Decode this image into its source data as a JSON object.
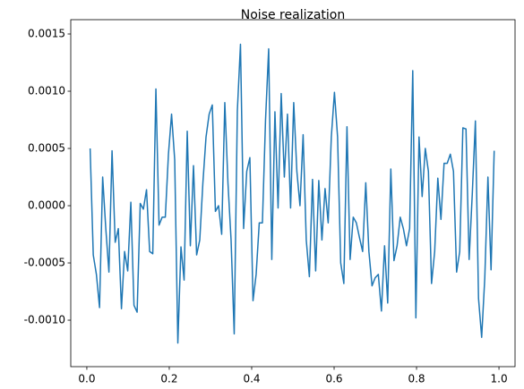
{
  "chart_data": {
    "type": "line",
    "title": "Noise realization",
    "color": "#1f77b4",
    "x": [
      0.008,
      0.0156,
      0.0232,
      0.0308,
      0.0384,
      0.046,
      0.0536,
      0.0612,
      0.0688,
      0.0764,
      0.084,
      0.0916,
      0.0992,
      0.1068,
      0.1144,
      0.122,
      0.1296,
      0.1372,
      0.1448,
      0.1524,
      0.16,
      0.1676,
      0.1752,
      0.1828,
      0.1904,
      0.198,
      0.2056,
      0.2132,
      0.2208,
      0.2284,
      0.236,
      0.2436,
      0.2512,
      0.2588,
      0.2664,
      0.274,
      0.2816,
      0.2892,
      0.2968,
      0.3044,
      0.312,
      0.3196,
      0.3272,
      0.3348,
      0.3424,
      0.35,
      0.3576,
      0.3652,
      0.3728,
      0.3804,
      0.388,
      0.3956,
      0.4032,
      0.4108,
      0.4184,
      0.426,
      0.4336,
      0.4412,
      0.4488,
      0.4564,
      0.464,
      0.4716,
      0.4792,
      0.4868,
      0.4944,
      0.502,
      0.5096,
      0.5172,
      0.5248,
      0.5324,
      0.54,
      0.5476,
      0.5552,
      0.5628,
      0.5704,
      0.578,
      0.5856,
      0.5932,
      0.6008,
      0.6084,
      0.616,
      0.6236,
      0.6312,
      0.6388,
      0.6464,
      0.654,
      0.6616,
      0.6692,
      0.6768,
      0.6844,
      0.692,
      0.6996,
      0.7072,
      0.7148,
      0.7224,
      0.73,
      0.7376,
      0.7452,
      0.7528,
      0.7604,
      0.768,
      0.7756,
      0.7832,
      0.7908,
      0.7984,
      0.806,
      0.8136,
      0.8212,
      0.8288,
      0.8364,
      0.844,
      0.8516,
      0.8592,
      0.8668,
      0.8744,
      0.882,
      0.8896,
      0.8972,
      0.9048,
      0.9124,
      0.92,
      0.9276,
      0.9352,
      0.9428,
      0.9504,
      0.958,
      0.9656,
      0.9732,
      0.9808,
      0.9884
    ],
    "values": [
      0.0005,
      -0.00043,
      -0.0006,
      -0.00089,
      0.00025,
      -0.0002,
      -0.00058,
      0.00048,
      -0.00032,
      -0.0002,
      -0.0009,
      -0.0004,
      -0.00057,
      3e-05,
      -0.00087,
      -0.00093,
      2e-05,
      -3e-05,
      0.00014,
      -0.0004,
      -0.00042,
      0.00102,
      -0.00017,
      -0.0001,
      -0.0001,
      0.00045,
      0.0008,
      0.0004,
      -0.0012,
      -0.00036,
      -0.00065,
      0.00065,
      -0.00035,
      0.00035,
      -0.00043,
      -0.0003,
      0.0002,
      0.0006,
      0.0008,
      0.00088,
      -5e-05,
      0,
      -0.00025,
      0.0009,
      0.0002,
      -0.0003,
      -0.00112,
      0.00083,
      0.00141,
      -0.0002,
      0.0003,
      0.00042,
      -0.00083,
      -0.0006,
      -0.00015,
      -0.00015,
      0.00075,
      0.00137,
      -0.00047,
      0.00082,
      -2e-05,
      0.00098,
      0.00025,
      0.0008,
      -2e-05,
      0.0009,
      0.0003,
      0,
      0.00062,
      -0.0003,
      -0.00062,
      0.00023,
      -0.00057,
      0.00022,
      -0.0003,
      0.00015,
      -0.00015,
      0.0006,
      0.00099,
      0.0006,
      -0.0005,
      -0.00068,
      0.00069,
      -0.00047,
      -0.0001,
      -0.00015,
      -0.00028,
      -0.0004,
      0.0002,
      -0.0004,
      -0.0007,
      -0.00063,
      -0.0006,
      -0.00092,
      -0.00035,
      -0.00085,
      0.00032,
      -0.00048,
      -0.00035,
      -0.0001,
      -0.0002,
      -0.00035,
      -0.0002,
      0.00118,
      -0.00098,
      0.0006,
      8e-05,
      0.0005,
      0.0003,
      -0.00068,
      -0.0004,
      0.00024,
      -0.00012,
      0.00037,
      0.00037,
      0.00045,
      0.0003,
      -0.00058,
      -0.0004,
      0.00068,
      0.00067,
      -0.00047,
      0.0001,
      0.00074,
      -0.00081,
      -0.00115,
      -0.00063,
      0.00025,
      -0.00056,
      0.00048
    ],
    "xlim": [
      -0.039,
      1.039
    ],
    "ylim": [
      -0.001406,
      0.001625
    ],
    "xticks": [
      {
        "value": 0,
        "label": "0.0"
      },
      {
        "value": 0.2,
        "label": "0.2"
      },
      {
        "value": 0.4,
        "label": "0.4"
      },
      {
        "value": 0.6,
        "label": "0.6"
      },
      {
        "value": 0.8,
        "label": "0.8"
      },
      {
        "value": 1,
        "label": "1.0"
      }
    ],
    "yticks": [
      {
        "value": -0.001,
        "label": "-0.0010"
      },
      {
        "value": -0.0005,
        "label": "-0.0005"
      },
      {
        "value": 0,
        "label": "0.0000"
      },
      {
        "value": 0.0005,
        "label": "0.0005"
      },
      {
        "value": 0.001,
        "label": "0.0010"
      },
      {
        "value": 0.0015,
        "label": "0.0015"
      }
    ]
  }
}
